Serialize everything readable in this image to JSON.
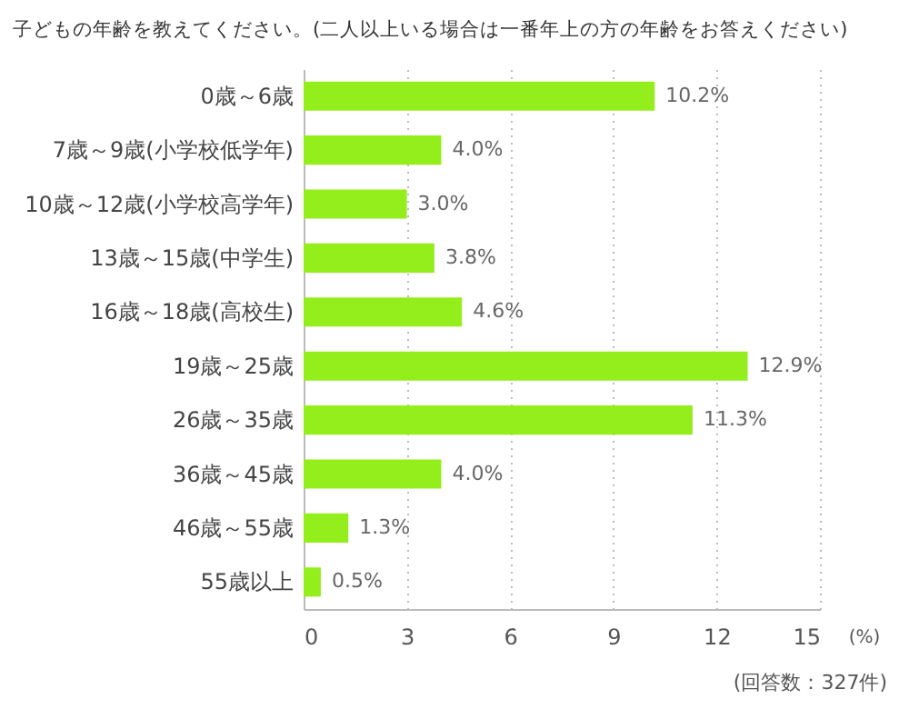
{
  "chart_data": {
    "type": "bar",
    "orientation": "horizontal",
    "title": "子どもの年齢を教えてください。(二人以上いる場合は一番年上の方の年齢をお答えください)",
    "categories": [
      "0歳～6歳",
      "7歳～9歳(小学校低学年)",
      "10歳～12歳(小学校高学年)",
      "13歳～15歳(中学生)",
      "16歳～18歳(高校生)",
      "19歳～25歳",
      "26歳～35歳",
      "36歳～45歳",
      "46歳～55歳",
      "55歳以上"
    ],
    "values": [
      10.2,
      4.0,
      3.0,
      3.8,
      4.6,
      12.9,
      11.3,
      4.0,
      1.3,
      0.5
    ],
    "value_labels": [
      "10.2%",
      "4.0%",
      "3.0%",
      "3.8%",
      "4.6%",
      "12.9%",
      "11.3%",
      "4.0%",
      "1.3%",
      "0.5%"
    ],
    "color": "#93ee1c",
    "xlim": [
      0,
      15
    ],
    "xticks": [
      0,
      3,
      6,
      9,
      12,
      15
    ],
    "xlabel": "(%)",
    "grid": "x",
    "annotations": [
      "(回答数：327件)"
    ]
  }
}
